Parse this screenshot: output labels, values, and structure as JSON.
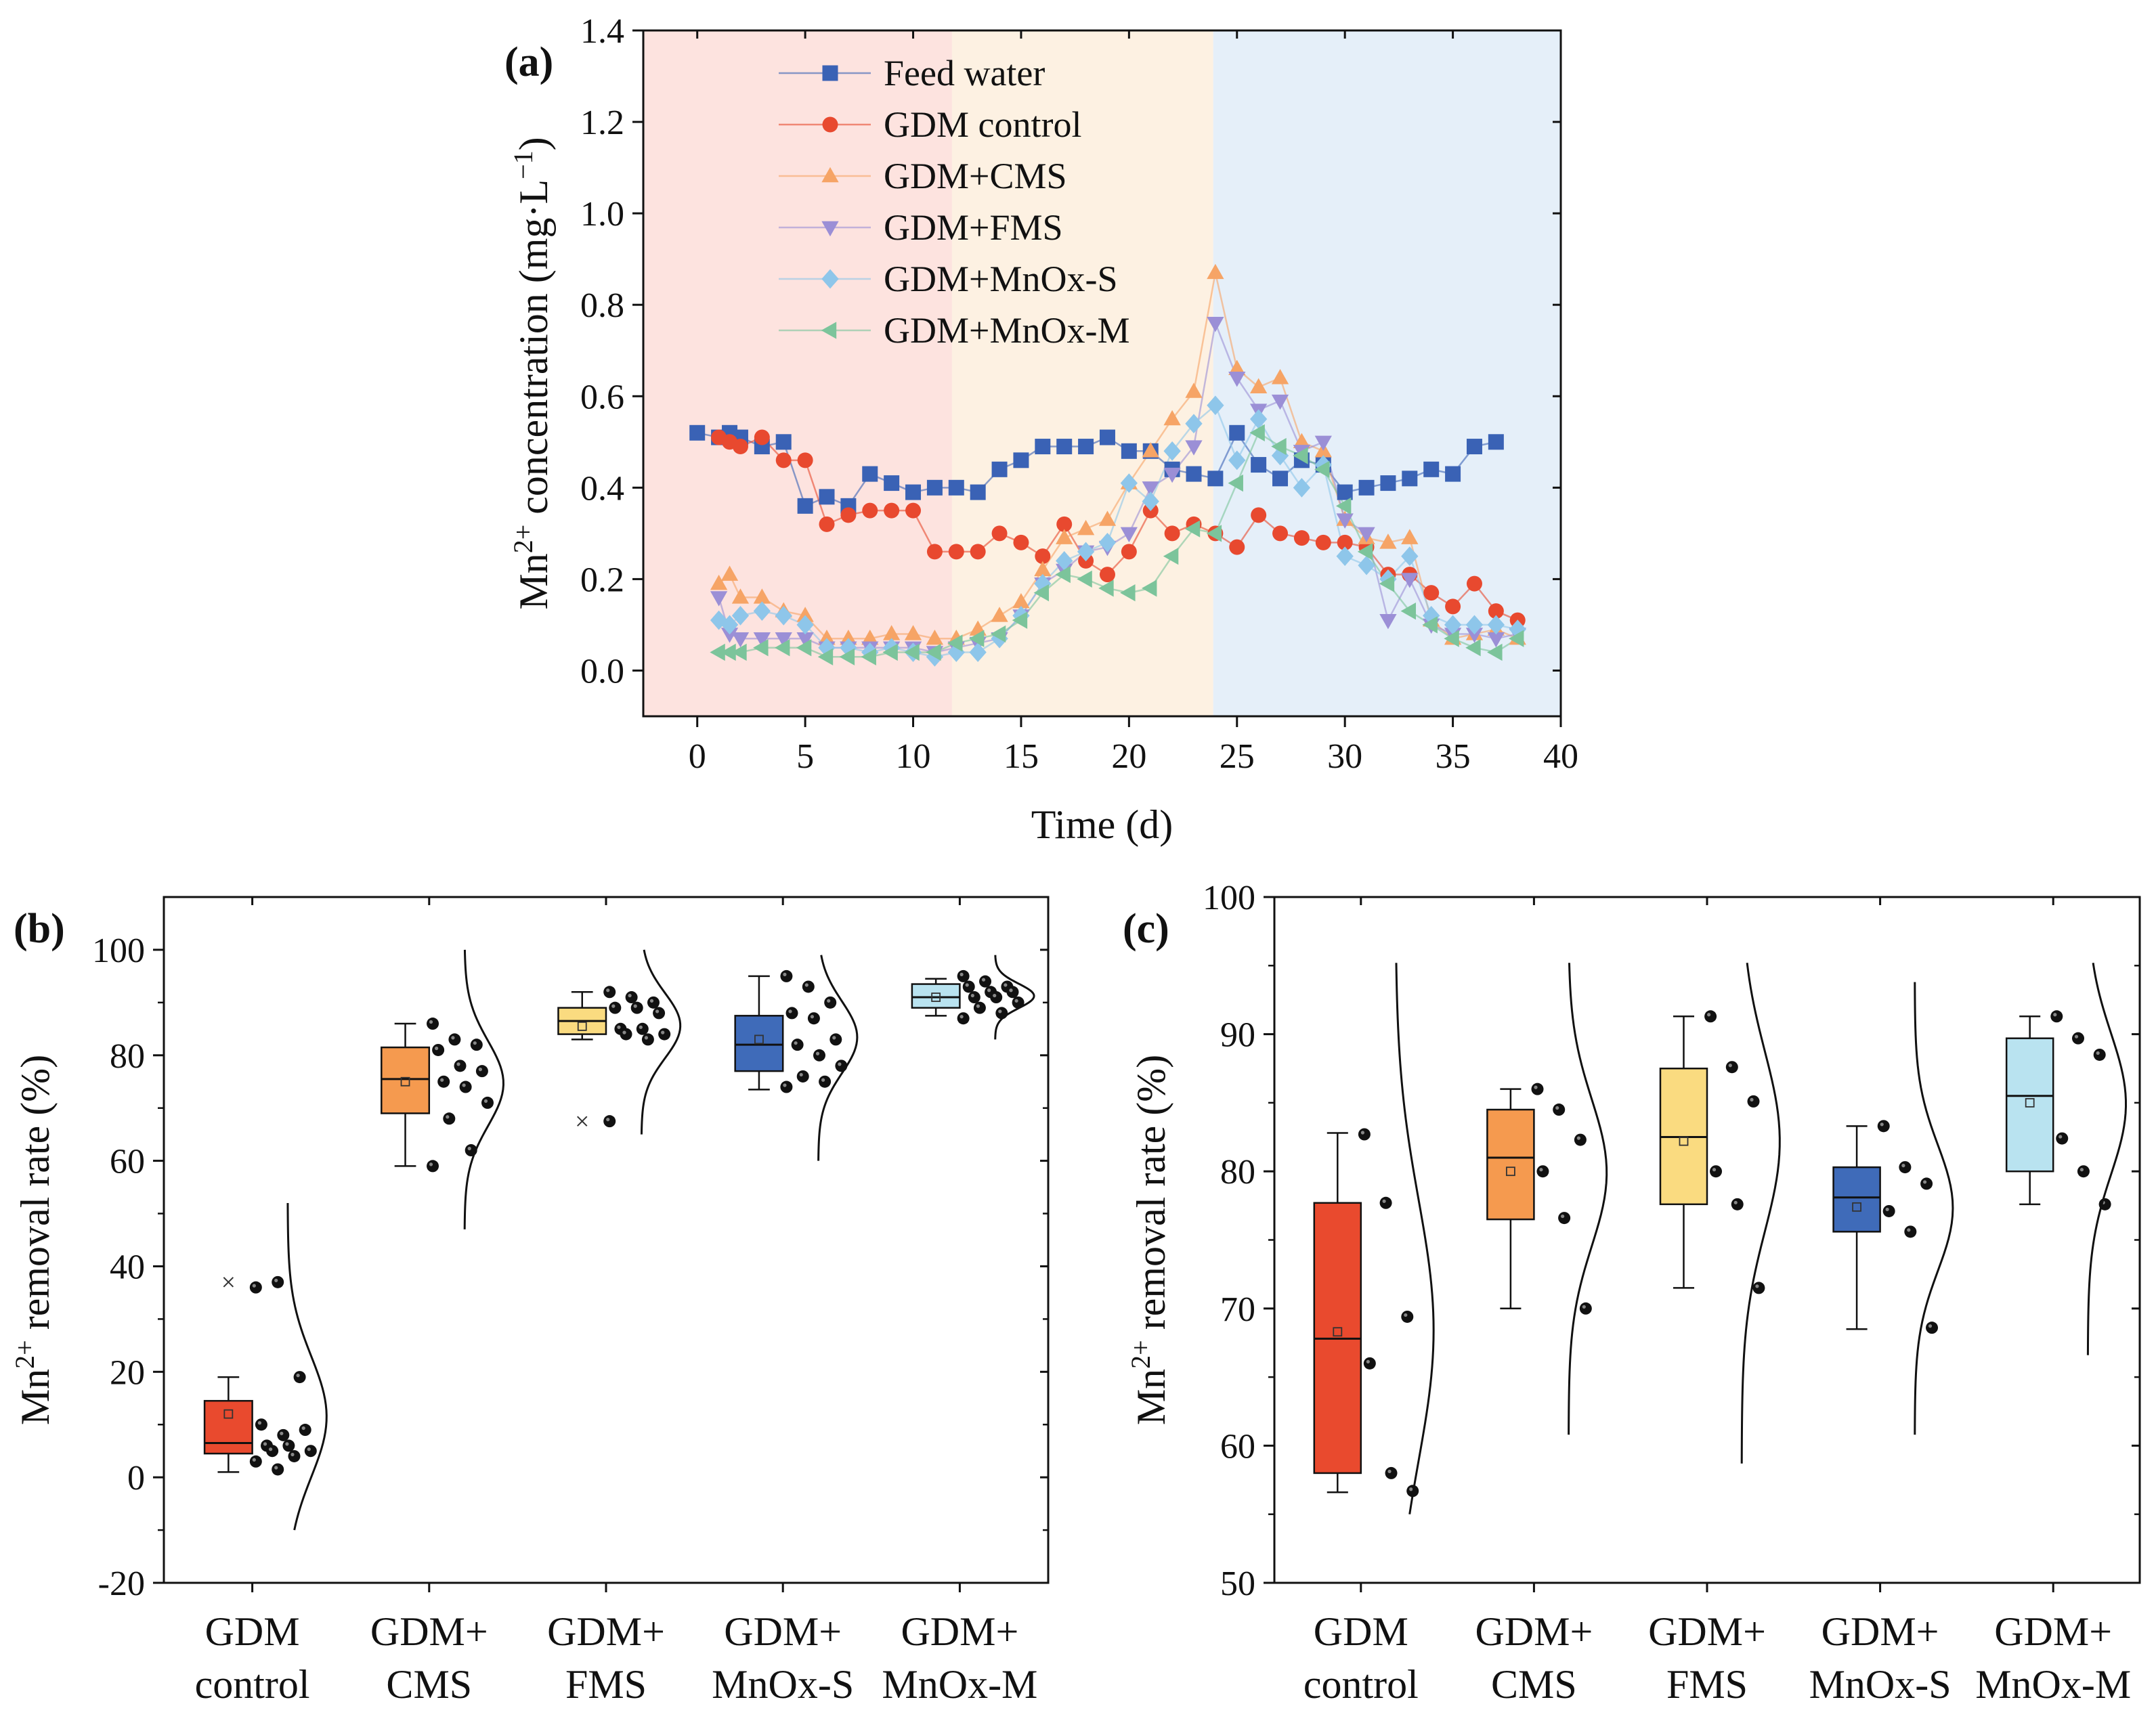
{
  "figure_caption_hidden": "",
  "chart_data": [
    {
      "panel": "(a)",
      "type": "line",
      "xlabel": "Time (d)",
      "ylabel": "Mn2+ concentration (mg·L−1)",
      "ylabel_parts": {
        "base": "Mn",
        "base_sup": "2+",
        "mid": " concentration (mg·L",
        "unit_sup": "−1",
        "end": ")"
      },
      "xlim": [
        -2.5,
        40
      ],
      "ylim": [
        -0.1,
        1.4
      ],
      "xticks": [
        0,
        5,
        10,
        15,
        20,
        25,
        30,
        35,
        40
      ],
      "yticks": [
        0.0,
        0.2,
        0.4,
        0.6,
        0.8,
        1.0,
        1.2,
        1.4
      ],
      "ytick_labels": [
        "0.0",
        "0.2",
        "0.4",
        "0.6",
        "0.8",
        "1.0",
        "1.2",
        "1.4"
      ],
      "background_bands": [
        {
          "from": -2.5,
          "to": 11.8,
          "color": "#fde3df"
        },
        {
          "from": 11.8,
          "to": 23.9,
          "color": "#fdf1e2"
        },
        {
          "from": 23.9,
          "to": 40,
          "color": "#e5eff9"
        }
      ],
      "series": [
        {
          "name": "Feed water",
          "marker": "square",
          "color": "#3a62b5",
          "x": [
            0,
            1,
            1.5,
            2,
            3,
            4,
            5,
            6,
            7,
            8,
            9,
            10,
            11,
            12,
            13,
            14,
            15,
            16,
            17,
            18,
            19,
            20,
            21,
            22,
            23,
            24,
            25,
            26,
            27,
            28,
            29,
            30,
            31,
            32,
            33,
            34,
            35,
            36,
            37
          ],
          "y": [
            0.52,
            0.51,
            0.52,
            0.51,
            0.49,
            0.5,
            0.36,
            0.38,
            0.36,
            0.43,
            0.41,
            0.39,
            0.4,
            0.4,
            0.39,
            0.44,
            0.46,
            0.49,
            0.49,
            0.49,
            0.51,
            0.48,
            0.48,
            0.44,
            0.43,
            0.42,
            0.52,
            0.45,
            0.42,
            0.46,
            0.45,
            0.39,
            0.4,
            0.41,
            0.42,
            0.44,
            0.43,
            0.49,
            0.5
          ]
        },
        {
          "name": "GDM control",
          "marker": "circle",
          "color": "#e8492f",
          "x": [
            1,
            1.5,
            2,
            3,
            4,
            5,
            6,
            7,
            8,
            9,
            10,
            11,
            12,
            13,
            14,
            15,
            16,
            17,
            18,
            19,
            20,
            21,
            22,
            23,
            24,
            25,
            26,
            27,
            28,
            29,
            30,
            31,
            32,
            33,
            34,
            35,
            36,
            37,
            38
          ],
          "y": [
            0.51,
            0.5,
            0.49,
            0.51,
            0.46,
            0.46,
            0.32,
            0.34,
            0.35,
            0.35,
            0.35,
            0.26,
            0.26,
            0.26,
            0.3,
            0.28,
            0.25,
            0.32,
            0.24,
            0.21,
            0.26,
            0.35,
            0.3,
            0.32,
            0.3,
            0.27,
            0.34,
            0.3,
            0.29,
            0.28,
            0.28,
            0.27,
            0.21,
            0.21,
            0.17,
            0.14,
            0.19,
            0.13,
            0.11
          ]
        },
        {
          "name": "GDM+CMS",
          "marker": "triangle-up",
          "color": "#f6a466",
          "x": [
            1,
            1.5,
            2,
            3,
            4,
            5,
            6,
            7,
            8,
            9,
            10,
            11,
            12,
            13,
            14,
            15,
            16,
            17,
            18,
            19,
            20,
            21,
            22,
            23,
            24,
            25,
            26,
            27,
            28,
            29,
            30,
            31,
            32,
            33,
            34,
            35,
            36,
            37,
            38
          ],
          "y": [
            0.19,
            0.21,
            0.16,
            0.16,
            0.13,
            0.12,
            0.07,
            0.07,
            0.07,
            0.08,
            0.08,
            0.07,
            0.07,
            0.09,
            0.12,
            0.15,
            0.22,
            0.29,
            0.31,
            0.33,
            0.41,
            0.48,
            0.55,
            0.61,
            0.87,
            0.66,
            0.62,
            0.64,
            0.5,
            0.48,
            0.33,
            0.29,
            0.28,
            0.29,
            0.11,
            0.07,
            0.08,
            0.09,
            0.07
          ]
        },
        {
          "name": "GDM+FMS",
          "marker": "triangle-down",
          "color": "#9b8fd6",
          "x": [
            1,
            1.5,
            2,
            3,
            4,
            5,
            6,
            7,
            8,
            9,
            10,
            11,
            12,
            13,
            14,
            15,
            16,
            17,
            18,
            19,
            20,
            21,
            22,
            23,
            24,
            25,
            26,
            27,
            28,
            29,
            30,
            31,
            32,
            33,
            34,
            35,
            36,
            37,
            38
          ],
          "y": [
            0.16,
            0.08,
            0.07,
            0.07,
            0.07,
            0.07,
            0.05,
            0.05,
            0.05,
            0.05,
            0.05,
            0.04,
            0.05,
            0.06,
            0.07,
            0.12,
            0.19,
            0.22,
            0.26,
            0.27,
            0.3,
            0.4,
            0.43,
            0.49,
            0.76,
            0.64,
            0.57,
            0.59,
            0.48,
            0.5,
            0.33,
            0.3,
            0.11,
            0.2,
            0.1,
            0.08,
            0.08,
            0.07,
            0.08
          ]
        },
        {
          "name": "GDM+MnOx-S",
          "marker": "diamond",
          "color": "#8ec6ea",
          "x": [
            1,
            1.5,
            2,
            3,
            4,
            5,
            6,
            7,
            8,
            9,
            10,
            11,
            12,
            13,
            14,
            15,
            16,
            17,
            18,
            19,
            20,
            21,
            22,
            23,
            24,
            25,
            26,
            27,
            28,
            29,
            30,
            31,
            32,
            33,
            34,
            35,
            36,
            37,
            38
          ],
          "y": [
            0.11,
            0.1,
            0.12,
            0.13,
            0.12,
            0.1,
            0.05,
            0.05,
            0.04,
            0.05,
            0.04,
            0.03,
            0.04,
            0.04,
            0.07,
            0.12,
            0.19,
            0.24,
            0.26,
            0.28,
            0.41,
            0.37,
            0.48,
            0.54,
            0.58,
            0.46,
            0.55,
            0.47,
            0.4,
            0.45,
            0.25,
            0.23,
            0.2,
            0.25,
            0.12,
            0.1,
            0.1,
            0.1,
            0.09
          ]
        },
        {
          "name": "GDM+MnOx-M",
          "marker": "triangle-left",
          "color": "#7cc49b",
          "x": [
            1,
            1.5,
            2,
            3,
            4,
            5,
            6,
            7,
            8,
            9,
            10,
            11,
            12,
            13,
            14,
            15,
            16,
            17,
            18,
            19,
            20,
            21,
            22,
            23,
            24,
            25,
            26,
            27,
            28,
            29,
            30,
            31,
            32,
            33,
            34,
            35,
            36,
            37,
            38
          ],
          "y": [
            0.04,
            0.04,
            0.04,
            0.05,
            0.05,
            0.05,
            0.03,
            0.03,
            0.03,
            0.04,
            0.04,
            0.04,
            0.06,
            0.07,
            0.08,
            0.11,
            0.17,
            0.21,
            0.2,
            0.18,
            0.17,
            0.18,
            0.25,
            0.31,
            0.3,
            0.41,
            0.52,
            0.49,
            0.47,
            0.44,
            0.36,
            0.26,
            0.19,
            0.13,
            0.1,
            0.07,
            0.05,
            0.04,
            0.07
          ]
        }
      ]
    },
    {
      "panel": "(b)",
      "type": "box",
      "ylabel": "Mn2+ removal rate (%)",
      "ylabel_parts": {
        "base": "Mn",
        "base_sup": "2+",
        "end": " removal rate (%)"
      },
      "ylim": [
        -20,
        110
      ],
      "yticks": [
        -20,
        0,
        20,
        40,
        60,
        80,
        100
      ],
      "categories": [
        "GDM control",
        "GDM+ CMS",
        "GDM+ FMS",
        "GDM+ MnOx-S",
        "GDM+ MnOx-M"
      ],
      "category_lines": [
        [
          "GDM",
          "control"
        ],
        [
          "GDM+",
          "CMS"
        ],
        [
          "GDM+",
          "FMS"
        ],
        [
          "GDM+",
          "MnOx-S"
        ],
        [
          "GDM+",
          "MnOx-M"
        ]
      ],
      "boxes": [
        {
          "color": "#e94a2e",
          "q1": 4.5,
          "median": 6.5,
          "q3": 14.5,
          "whisker_low": 1,
          "whisker_high": 19,
          "mean": 12,
          "outliers": [
            37
          ],
          "points": [
            36,
            37,
            19,
            10,
            8,
            9,
            6,
            6,
            5,
            5,
            4,
            3,
            1.5
          ],
          "curve_range": [
            -10,
            52
          ]
        },
        {
          "color": "#f59a4f",
          "q1": 69,
          "median": 75.5,
          "q3": 81.5,
          "whisker_low": 59,
          "whisker_high": 86,
          "mean": 75,
          "outliers": [],
          "points": [
            86,
            83,
            82,
            81,
            78,
            77,
            75,
            74,
            71,
            68,
            62,
            59
          ],
          "curve_range": [
            47,
            100
          ]
        },
        {
          "color": "#fadb80",
          "q1": 84,
          "median": 86.5,
          "q3": 89,
          "whisker_low": 83,
          "whisker_high": 92,
          "mean": 85.5,
          "outliers": [
            67.5
          ],
          "points": [
            92,
            91,
            90,
            89,
            89,
            88,
            85,
            85,
            84,
            84,
            83,
            67.5
          ],
          "curve_range": [
            65,
            100
          ]
        },
        {
          "color": "#3f6bb9",
          "q1": 77,
          "median": 82,
          "q3": 87.5,
          "whisker_low": 73.5,
          "whisker_high": 95,
          "mean": 83,
          "outliers": [],
          "points": [
            95,
            93,
            90,
            88,
            87,
            83,
            82,
            80,
            78,
            76,
            75,
            74
          ],
          "curve_range": [
            60,
            99
          ]
        },
        {
          "color": "#b9e3f0",
          "q1": 89,
          "median": 91,
          "q3": 93.5,
          "whisker_low": 87.5,
          "whisker_high": 94.5,
          "mean": 91,
          "outliers": [],
          "points": [
            95,
            94,
            93,
            93,
            92,
            92,
            91,
            91,
            90,
            89,
            88,
            87
          ],
          "curve_range": [
            83,
            99
          ]
        }
      ]
    },
    {
      "panel": "(c)",
      "type": "box",
      "ylabel": "Mn2+ removal rate (%)",
      "ylabel_parts": {
        "base": "Mn",
        "base_sup": "2+",
        "end": " removal rate (%)"
      },
      "ylim": [
        50,
        100
      ],
      "yticks": [
        50,
        60,
        70,
        80,
        90,
        100
      ],
      "categories": [
        "GDM control",
        "GDM+ CMS",
        "GDM+ FMS",
        "GDM+ MnOx-S",
        "GDM+ MnOx-M"
      ],
      "category_lines": [
        [
          "GDM",
          "control"
        ],
        [
          "GDM+",
          "CMS"
        ],
        [
          "GDM+",
          "FMS"
        ],
        [
          "GDM+",
          "MnOx-S"
        ],
        [
          "GDM+",
          "MnOx-M"
        ]
      ],
      "boxes": [
        {
          "color": "#e94a2e",
          "q1": 58,
          "median": 67.8,
          "q3": 77.7,
          "whisker_low": 56.6,
          "whisker_high": 82.8,
          "mean": 68.3,
          "outliers": [],
          "points": [
            82.7,
            77.7,
            69.4,
            66,
            58,
            56.7
          ],
          "curve_range": [
            55,
            95.2
          ]
        },
        {
          "color": "#f59a4f",
          "q1": 76.5,
          "median": 81,
          "q3": 84.5,
          "whisker_low": 70,
          "whisker_high": 86,
          "mean": 80,
          "outliers": [],
          "points": [
            86,
            84.5,
            82.3,
            80,
            76.6,
            70
          ],
          "curve_range": [
            60.8,
            95.2
          ]
        },
        {
          "color": "#fadb80",
          "q1": 77.6,
          "median": 82.5,
          "q3": 87.5,
          "whisker_low": 71.5,
          "whisker_high": 91.3,
          "mean": 82.2,
          "outliers": [],
          "points": [
            91.3,
            87.6,
            85.1,
            80,
            77.6,
            71.5
          ],
          "curve_range": [
            58.7,
            95.2
          ]
        },
        {
          "color": "#3f6bb9",
          "q1": 75.6,
          "median": 78.1,
          "q3": 80.3,
          "whisker_low": 68.5,
          "whisker_high": 83.3,
          "mean": 77.4,
          "outliers": [],
          "points": [
            83.3,
            80.3,
            79.1,
            77.1,
            75.6,
            68.6
          ],
          "curve_range": [
            60.8,
            93.8
          ]
        },
        {
          "color": "#b9e3f0",
          "q1": 80,
          "median": 85.5,
          "q3": 89.7,
          "whisker_low": 77.6,
          "whisker_high": 91.3,
          "mean": 85,
          "outliers": [],
          "points": [
            91.3,
            89.7,
            88.5,
            82.4,
            80,
            77.6
          ],
          "curve_range": [
            66.6,
            95.2
          ]
        }
      ]
    }
  ]
}
